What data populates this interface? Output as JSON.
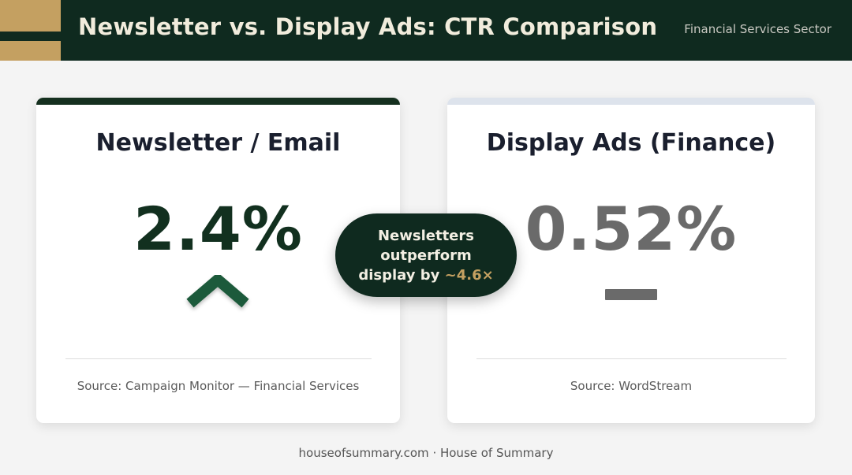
{
  "header": {
    "title": "Newsletter vs. Display Ads: CTR Comparison",
    "sector": "Financial Services Sector"
  },
  "cards": {
    "left": {
      "title": "Newsletter / Email",
      "value": "2.4%",
      "trend_icon": "chevron-up-icon",
      "source": "Source: Campaign Monitor — Financial Services"
    },
    "right": {
      "title": "Display Ads (Finance)",
      "value": "0.52%",
      "trend_icon": "dash-icon",
      "source": "Source: WordStream"
    }
  },
  "comparison": {
    "line1": "Newsletters",
    "line2": "outperform",
    "line3_prefix": "display by ",
    "line3_accent": "~4.6×"
  },
  "footer": {
    "text": "houseofsummary.com · House of Summary"
  },
  "colors": {
    "dark_green": "#0f2a1f",
    "gold": "#c4a061",
    "gray_value": "#6a6a6a",
    "up_green": "#1f5a3a"
  }
}
